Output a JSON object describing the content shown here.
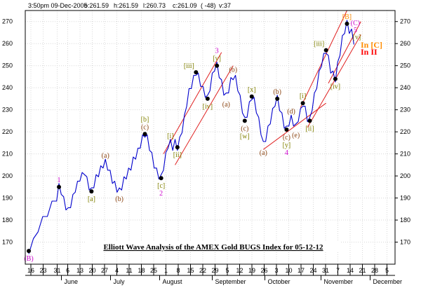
{
  "chart_data": {
    "type": "line",
    "header": "3:50pm 09-Dec-2005",
    "ohlc": {
      "o": "261.59",
      "h": "261.59",
      "l": "260.73",
      "c": "261.09",
      "change": "( -48)",
      "v": "37"
    },
    "title": "Elliott Wave Analysis of the AMEX Gold BUGS Index for 05-12-12",
    "ylim": [
      160,
      275
    ],
    "y_ticks": [
      170,
      180,
      190,
      200,
      210,
      220,
      230,
      240,
      250,
      260,
      270
    ],
    "x_range": [
      0,
      185
    ],
    "day_ticks": [
      {
        "x": 0,
        "label": "16"
      },
      {
        "x": 7,
        "label": "23"
      },
      {
        "x": 15,
        "label": "31"
      },
      {
        "x": 21,
        "label": "6"
      },
      {
        "x": 28,
        "label": "13"
      },
      {
        "x": 35,
        "label": "20"
      },
      {
        "x": 42,
        "label": "27"
      },
      {
        "x": 49,
        "label": "4"
      },
      {
        "x": 56,
        "label": "11"
      },
      {
        "x": 63,
        "label": "18"
      },
      {
        "x": 70,
        "label": "25"
      },
      {
        "x": 77,
        "label": "1"
      },
      {
        "x": 84,
        "label": "8"
      },
      {
        "x": 91,
        "label": "15"
      },
      {
        "x": 98,
        "label": "22"
      },
      {
        "x": 105,
        "label": "29"
      },
      {
        "x": 112,
        "label": "5"
      },
      {
        "x": 119,
        "label": "12"
      },
      {
        "x": 126,
        "label": "19"
      },
      {
        "x": 133,
        "label": "26"
      },
      {
        "x": 140,
        "label": "3"
      },
      {
        "x": 147,
        "label": "10"
      },
      {
        "x": 154,
        "label": "17"
      },
      {
        "x": 161,
        "label": "24"
      },
      {
        "x": 168,
        "label": "31"
      },
      {
        "x": 175,
        "label": "7"
      },
      {
        "x": 182,
        "label": "14"
      },
      {
        "x": 189,
        "label": "21"
      },
      {
        "x": 196,
        "label": "28"
      },
      {
        "x": 203,
        "label": "5"
      }
    ],
    "months": [
      {
        "x": 19,
        "label": "June"
      },
      {
        "x": 47,
        "label": "July"
      },
      {
        "x": 75,
        "label": "August"
      },
      {
        "x": 105,
        "label": "September"
      },
      {
        "x": 135,
        "label": "October"
      },
      {
        "x": 167,
        "label": "November"
      },
      {
        "x": 195,
        "label": "December"
      }
    ],
    "price_path": [
      [
        0,
        166
      ],
      [
        2,
        170
      ],
      [
        4,
        176
      ],
      [
        6,
        180
      ],
      [
        8,
        183
      ],
      [
        10,
        187
      ],
      [
        12,
        190
      ],
      [
        13,
        195
      ],
      [
        14,
        193
      ],
      [
        15,
        189
      ],
      [
        16,
        186
      ],
      [
        17,
        184
      ],
      [
        18,
        187
      ],
      [
        19,
        190
      ],
      [
        20,
        194
      ],
      [
        21,
        196
      ],
      [
        22,
        199
      ],
      [
        23,
        200
      ],
      [
        24,
        202
      ],
      [
        25,
        198
      ],
      [
        26,
        195
      ],
      [
        27,
        193
      ],
      [
        28,
        196
      ],
      [
        29,
        199
      ],
      [
        30,
        201
      ],
      [
        31,
        203
      ],
      [
        32,
        205
      ],
      [
        33,
        206
      ],
      [
        34,
        204
      ],
      [
        35,
        201
      ],
      [
        36,
        198
      ],
      [
        37,
        196
      ],
      [
        38,
        194
      ],
      [
        39,
        193
      ],
      [
        40,
        195
      ],
      [
        41,
        198
      ],
      [
        42,
        200
      ],
      [
        43,
        202
      ],
      [
        44,
        204
      ],
      [
        45,
        207
      ],
      [
        46,
        209
      ],
      [
        47,
        211
      ],
      [
        48,
        214
      ],
      [
        49,
        217
      ],
      [
        50,
        219
      ],
      [
        51,
        217
      ],
      [
        52,
        213
      ],
      [
        53,
        209
      ],
      [
        54,
        205
      ],
      [
        55,
        202
      ],
      [
        56,
        200
      ],
      [
        57,
        199
      ],
      [
        58,
        204
      ],
      [
        59,
        209
      ],
      [
        60,
        214
      ],
      [
        61,
        215
      ],
      [
        62,
        213
      ],
      [
        63,
        215
      ],
      [
        64,
        213
      ],
      [
        65,
        216
      ],
      [
        66,
        221
      ],
      [
        67,
        226
      ],
      [
        68,
        233
      ],
      [
        69,
        238
      ],
      [
        70,
        241
      ],
      [
        71,
        244
      ],
      [
        72,
        247
      ],
      [
        73,
        245
      ],
      [
        74,
        242
      ],
      [
        75,
        239
      ],
      [
        76,
        237
      ],
      [
        77,
        235
      ],
      [
        78,
        240
      ],
      [
        79,
        245
      ],
      [
        80,
        249
      ],
      [
        81,
        250
      ],
      [
        82,
        246
      ],
      [
        83,
        242
      ],
      [
        84,
        238
      ],
      [
        85,
        236
      ],
      [
        86,
        239
      ],
      [
        87,
        243
      ],
      [
        88,
        245
      ],
      [
        89,
        244
      ],
      [
        90,
        240
      ],
      [
        91,
        235
      ],
      [
        92,
        230
      ],
      [
        93,
        225
      ],
      [
        94,
        228
      ],
      [
        95,
        232
      ],
      [
        96,
        236
      ],
      [
        97,
        234
      ],
      [
        98,
        230
      ],
      [
        99,
        225
      ],
      [
        100,
        220
      ],
      [
        101,
        214
      ],
      [
        102,
        217
      ],
      [
        103,
        221
      ],
      [
        104,
        225
      ],
      [
        105,
        229
      ],
      [
        106,
        233
      ],
      [
        107,
        235
      ],
      [
        108,
        231
      ],
      [
        109,
        227
      ],
      [
        110,
        223
      ],
      [
        111,
        221
      ],
      [
        112,
        224
      ],
      [
        113,
        226
      ],
      [
        114,
        224
      ],
      [
        115,
        222
      ],
      [
        116,
        226
      ],
      [
        117,
        229
      ],
      [
        118,
        233
      ],
      [
        119,
        230
      ],
      [
        120,
        226
      ],
      [
        121,
        225
      ],
      [
        122,
        231
      ],
      [
        123,
        236
      ],
      [
        124,
        241
      ],
      [
        125,
        246
      ],
      [
        126,
        251
      ],
      [
        127,
        254
      ],
      [
        128,
        257
      ],
      [
        129,
        253
      ],
      [
        130,
        248
      ],
      [
        131,
        246
      ],
      [
        132,
        244
      ],
      [
        133,
        250
      ],
      [
        134,
        256
      ],
      [
        135,
        262
      ],
      [
        136,
        266
      ],
      [
        137,
        269
      ],
      [
        138,
        266
      ],
      [
        139,
        265
      ],
      [
        140,
        261
      ]
    ],
    "wave_labels": [
      {
        "label": "1",
        "x": 13,
        "y": 195,
        "color": "#cc00cc",
        "dot": true,
        "pos": "above"
      },
      {
        "label": "[a]",
        "x": 27,
        "y": 193,
        "color": "#808000",
        "dot": true,
        "pos": "below"
      },
      {
        "label": "(a)",
        "x": 33,
        "y": 206,
        "color": "#8b4513",
        "dot": false,
        "pos": "above"
      },
      {
        "label": "(b)",
        "x": 39,
        "y": 193,
        "color": "#8b4513",
        "dot": false,
        "pos": "below"
      },
      {
        "label": "[b]",
        "x": 50,
        "y": 219,
        "color": "#808000",
        "dot": false,
        "pos": "above2"
      },
      {
        "label": "(c)",
        "x": 50,
        "y": 219,
        "color": "#8b4513",
        "dot": true,
        "pos": "above"
      },
      {
        "label": "[c]",
        "x": 57,
        "y": 199,
        "color": "#808000",
        "dot": true,
        "pos": "below"
      },
      {
        "label": "2",
        "x": 57,
        "y": 199,
        "color": "#cc00cc",
        "dot": false,
        "pos": "below2"
      },
      {
        "label": "[i]",
        "x": 61,
        "y": 215,
        "color": "#808000",
        "dot": false,
        "pos": "above"
      },
      {
        "label": "[ii]",
        "x": 64,
        "y": 213,
        "color": "#808000",
        "dot": true,
        "pos": "below"
      },
      {
        "label": "[iii]",
        "x": 72,
        "y": 247,
        "color": "#808000",
        "dot": true,
        "pos": "aboveleft"
      },
      {
        "label": "[iv]",
        "x": 77,
        "y": 235,
        "color": "#808000",
        "dot": true,
        "pos": "below"
      },
      {
        "label": "3",
        "x": 81,
        "y": 250,
        "color": "#cc00cc",
        "dot": false,
        "pos": "above2"
      },
      {
        "label": "[v]",
        "x": 81,
        "y": 250,
        "color": "#808000",
        "dot": true,
        "pos": "above"
      },
      {
        "label": "(a)",
        "x": 85,
        "y": 236,
        "color": "#8b4513",
        "dot": false,
        "pos": "below"
      },
      {
        "label": "(b)",
        "x": 88,
        "y": 245,
        "color": "#8b4513",
        "dot": false,
        "pos": "above"
      },
      {
        "label": "(c)",
        "x": 93,
        "y": 225,
        "color": "#8b4513",
        "dot": true,
        "pos": "below"
      },
      {
        "label": "[w]",
        "x": 93,
        "y": 225,
        "color": "#808000",
        "dot": false,
        "pos": "below2"
      },
      {
        "label": "[x]",
        "x": 96,
        "y": 236,
        "color": "#808000",
        "dot": true,
        "pos": "above"
      },
      {
        "label": "(a)",
        "x": 101,
        "y": 214,
        "color": "#8b4513",
        "dot": false,
        "pos": "below"
      },
      {
        "label": "(b)",
        "x": 107,
        "y": 235,
        "color": "#8b4513",
        "dot": true,
        "pos": "above"
      },
      {
        "label": "(c)",
        "x": 111,
        "y": 221,
        "color": "#8b4513",
        "dot": false,
        "pos": "below"
      },
      {
        "label": "[y]",
        "x": 111,
        "y": 221,
        "color": "#808000",
        "dot": true,
        "pos": "below2"
      },
      {
        "label": "4",
        "x": 111,
        "y": 221,
        "color": "#cc00cc",
        "dot": false,
        "pos": "below3"
      },
      {
        "label": "(d)",
        "x": 113,
        "y": 226,
        "color": "#8b4513",
        "dot": false,
        "pos": "above"
      },
      {
        "label": "(e)",
        "x": 115,
        "y": 222,
        "color": "#8b4513",
        "dot": false,
        "pos": "below"
      },
      {
        "label": "[i]",
        "x": 118,
        "y": 233,
        "color": "#808000",
        "dot": true,
        "pos": "above"
      },
      {
        "label": "[ii]",
        "x": 121,
        "y": 225,
        "color": "#808000",
        "dot": true,
        "pos": "below"
      },
      {
        "label": "[iii]",
        "x": 128,
        "y": 257,
        "color": "#808000",
        "dot": true,
        "pos": "aboveleft"
      },
      {
        "label": "[iv]",
        "x": 132,
        "y": 244,
        "color": "#808000",
        "dot": true,
        "pos": "below"
      },
      {
        "label": "[B]",
        "x": 137,
        "y": 269,
        "color": "#ff8c00",
        "dot": false,
        "pos": "above"
      },
      {
        "label": "(C)",
        "x": 137,
        "y": 269,
        "color": "#cc00cc",
        "dot": true,
        "pos": "right"
      },
      {
        "label": "5",
        "x": 137,
        "y": 269,
        "color": "#cc00cc",
        "dot": false,
        "pos": "right2"
      },
      {
        "label": "[v]",
        "x": 137,
        "y": 269,
        "color": "#808000",
        "dot": false,
        "pos": "right3"
      },
      {
        "label": "(B)",
        "x": 0,
        "y": 166,
        "color": "#cc00cc",
        "dot": true,
        "pos": "below"
      }
    ],
    "channels": [
      {
        "x1": 58,
        "y1": 210,
        "x2": 83,
        "y2": 256
      },
      {
        "x1": 63,
        "y1": 205,
        "x2": 88,
        "y2": 250
      },
      {
        "x1": 101,
        "y1": 212,
        "x2": 128,
        "y2": 233
      },
      {
        "x1": 117,
        "y1": 231,
        "x2": 137,
        "y2": 275
      },
      {
        "x1": 120,
        "y1": 222,
        "x2": 143,
        "y2": 264
      },
      {
        "x1": 129,
        "y1": 242,
        "x2": 143,
        "y2": 270
      }
    ],
    "annotations": [
      {
        "label": "In [C]",
        "x": 141,
        "y": 256,
        "color": "#ff8c00"
      },
      {
        "label": "In II",
        "x": 141,
        "y": 253,
        "color": "#ff0000"
      }
    ]
  }
}
